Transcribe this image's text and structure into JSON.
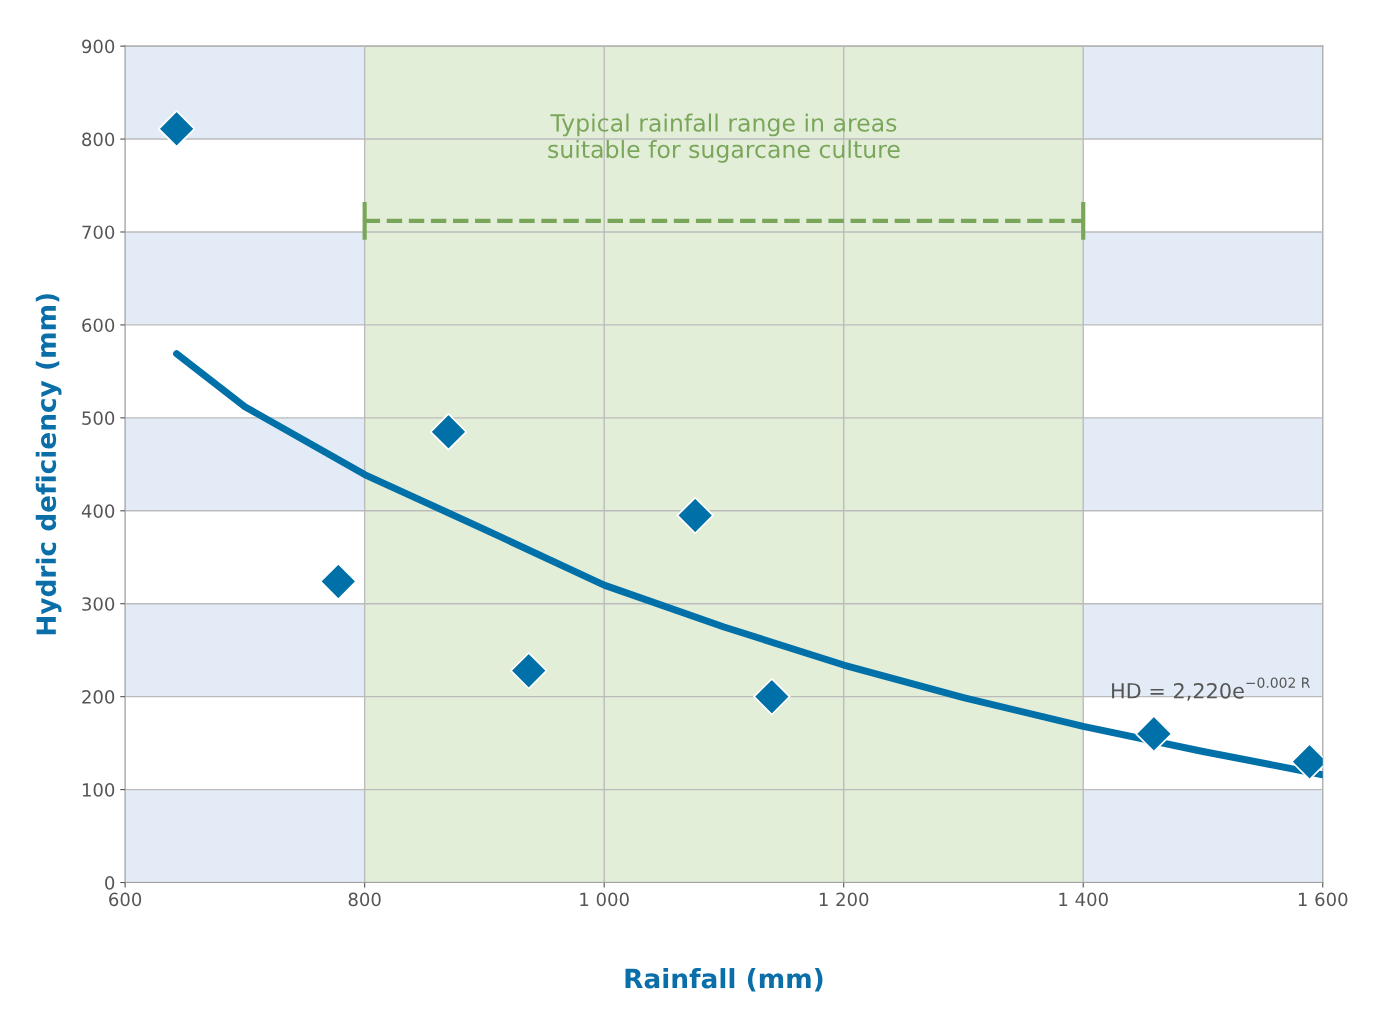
{
  "chart_data": {
    "type": "scatter",
    "xlabel": "Rainfall (mm)",
    "ylabel": "Hydric deficiency (mm)",
    "xlim": [
      600,
      1600
    ],
    "ylim": [
      0,
      900
    ],
    "xticks": [
      600,
      800,
      {
        "value": 1000,
        "label": "1 000"
      },
      {
        "value": 1200,
        "label": "1 200"
      },
      {
        "value": 1400,
        "label": "1 400"
      },
      {
        "value": 1600,
        "label": "1 600"
      }
    ],
    "yticks": [
      0,
      100,
      200,
      300,
      400,
      500,
      600,
      700,
      800,
      900
    ],
    "grid": true,
    "series": [
      {
        "type": "scatter",
        "color": "#0070a8",
        "marker": "diamond",
        "x": [
          643,
          778,
          870,
          937,
          1076,
          1140,
          1459,
          1589
        ],
        "values": [
          811,
          324,
          485,
          228,
          395,
          200,
          160,
          130
        ]
      },
      {
        "type": "line",
        "color": "#0070a8",
        "marker": "none",
        "line_style": "solid",
        "x": [
          643,
          700,
          800,
          900,
          1000,
          1100,
          1200,
          1300,
          1400,
          1500,
          1600
        ],
        "values": [
          569,
          512,
          439,
          380,
          320,
          275,
          234,
          199,
          168,
          141,
          116
        ]
      },
      {
        "type": "line",
        "color": "#7aa65a",
        "marker": "none",
        "line_style": "dashed",
        "x": [
          800,
          1400
        ],
        "values": [
          712,
          712
        ]
      }
    ],
    "bands": [
      {
        "axis": "y",
        "from": 0,
        "to": 100,
        "color": "#e3ecf6"
      },
      {
        "axis": "y",
        "from": 200,
        "to": 300,
        "color": "#e3ecf6"
      },
      {
        "axis": "y",
        "from": 400,
        "to": 500,
        "color": "#e3ecf6"
      },
      {
        "axis": "y",
        "from": 600,
        "to": 700,
        "color": "#e3ecf6"
      },
      {
        "axis": "y",
        "from": 800,
        "to": 900,
        "color": "#e3ecf6"
      },
      {
        "axis": "x",
        "from": 800,
        "to": 1400,
        "color": "#e3eed9",
        "label": "Typical rainfall range in areas\nsuitable for sugarcane culture"
      }
    ],
    "annotations": [
      "HD = 2,220e$^{−0.002 R}$"
    ]
  }
}
